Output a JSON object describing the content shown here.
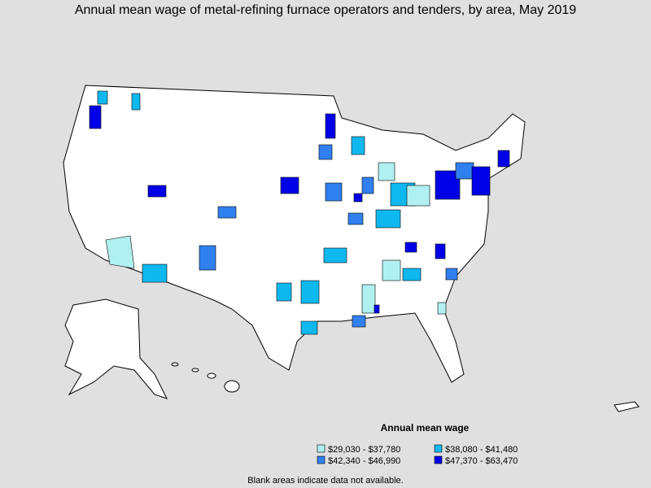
{
  "title": "Annual mean wage of metal-refining furnace operators and tenders, by area, May 2019",
  "legend": {
    "title": "Annual mean wage",
    "classes": [
      {
        "label": "$29,030 - $37,780",
        "color": "#b0f0f0"
      },
      {
        "label": "$38,080 - $41,480",
        "color": "#10b8f0"
      },
      {
        "label": "$42,340 - $46,990",
        "color": "#3080f0"
      },
      {
        "label": "$47,370 - $63,470",
        "color": "#0000e8"
      }
    ]
  },
  "footnote": "Blank areas indicate data not available."
}
